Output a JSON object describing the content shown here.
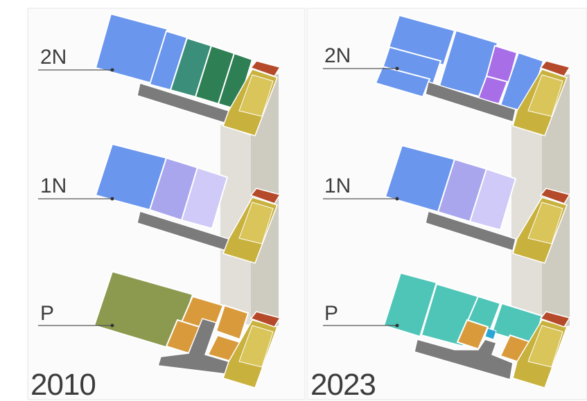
{
  "panels": [
    {
      "year": "2010",
      "floors": [
        {
          "label": "2N"
        },
        {
          "label": "1N"
        },
        {
          "label": "P"
        }
      ]
    },
    {
      "year": "2023",
      "floors": [
        {
          "label": "2N"
        },
        {
          "label": "1N"
        },
        {
          "label": "P"
        }
      ]
    }
  ],
  "colors": {
    "office_blue": "#6a96ee",
    "teal_green": "#3b8f7a",
    "dark_green": "#2f7f55",
    "lavender": "#a9a6ee",
    "light_lavender": "#cfcaf7",
    "olive": "#8c9a50",
    "orange": "#d99a3c",
    "turquoise": "#4fc5b7",
    "purple": "#a86ee8",
    "gray": "#7b7b7b",
    "stair_yellow": "#c8b13d",
    "brick": "#b54a2a",
    "shaft": "#c9c7c0"
  }
}
